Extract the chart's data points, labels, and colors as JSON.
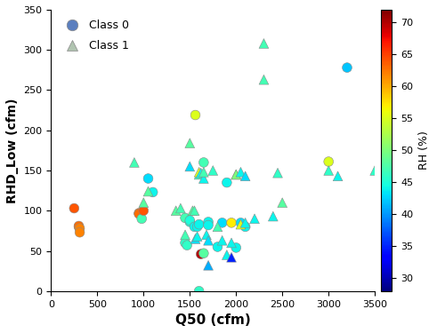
{
  "xlabel": "Q50 (cfm)",
  "ylabel": "RHD_Low (cfm)",
  "colorbar_label": "RH (%)",
  "xlim": [
    0,
    3500
  ],
  "ylim": [
    0,
    350
  ],
  "xticks": [
    0,
    500,
    1000,
    1500,
    2000,
    2500,
    3000,
    3500
  ],
  "yticks": [
    0,
    50,
    100,
    150,
    200,
    250,
    300,
    350
  ],
  "cbar_ticks": [
    30,
    35,
    40,
    45,
    50,
    55,
    60,
    65,
    70
  ],
  "vmin": 28,
  "vmax": 72,
  "marker_size": 60,
  "cmap": "jet",
  "class0": {
    "q50": [
      250,
      300,
      300,
      310,
      310,
      950,
      950,
      980,
      1000,
      1050,
      1100,
      1450,
      1450,
      1470,
      1500,
      1500,
      1550,
      1560,
      1580,
      1600,
      1600,
      1620,
      1650,
      1650,
      1700,
      1700,
      1800,
      1850,
      1900,
      1950,
      2000,
      2050,
      2100,
      3000,
      3200
    ],
    "rhd": [
      103,
      80,
      81,
      78,
      73,
      97,
      96,
      90,
      100,
      140,
      123,
      91,
      60,
      57,
      86,
      88,
      80,
      219,
      80,
      83,
      0,
      46,
      47,
      160,
      86,
      82,
      55,
      85,
      135,
      85,
      54,
      85,
      80,
      161,
      278
    ],
    "rh": [
      64,
      63,
      63,
      62,
      62,
      63,
      63,
      47,
      64,
      43,
      44,
      47,
      46,
      46,
      45,
      45,
      44,
      55,
      44,
      44,
      46,
      70,
      48,
      47,
      44,
      44,
      44,
      43,
      44,
      57,
      44,
      43,
      44,
      55,
      42
    ]
  },
  "class1": {
    "q50": [
      900,
      1000,
      1050,
      1350,
      1400,
      1450,
      1500,
      1500,
      1530,
      1550,
      1560,
      1580,
      1600,
      1600,
      1620,
      1650,
      1650,
      1680,
      1700,
      1700,
      1750,
      1800,
      1850,
      1900,
      1950,
      1950,
      2000,
      2000,
      2050,
      2050,
      2100,
      2100,
      2200,
      2300,
      2300,
      2400,
      2450,
      2500,
      3000,
      3100,
      3500
    ],
    "rhd": [
      160,
      110,
      124,
      100,
      103,
      70,
      184,
      155,
      100,
      100,
      65,
      68,
      145,
      148,
      147,
      140,
      148,
      70,
      63,
      32,
      150,
      80,
      63,
      45,
      60,
      42,
      145,
      145,
      148,
      83,
      143,
      85,
      90,
      263,
      308,
      93,
      147,
      110,
      150,
      143,
      150
    ],
    "rh": [
      47,
      48,
      48,
      48,
      47,
      47,
      48,
      43,
      48,
      47,
      43,
      44,
      46,
      55,
      44,
      44,
      47,
      44,
      43,
      41,
      46,
      47,
      44,
      44,
      44,
      35,
      48,
      50,
      44,
      55,
      43,
      44,
      44,
      47,
      47,
      44,
      46,
      48,
      46,
      44,
      46
    ]
  },
  "legend_circle_color": "#5b7fbf",
  "legend_triangle_color": "#b0c4b0",
  "figsize": [
    5.0,
    3.75
  ],
  "dpi": 100
}
